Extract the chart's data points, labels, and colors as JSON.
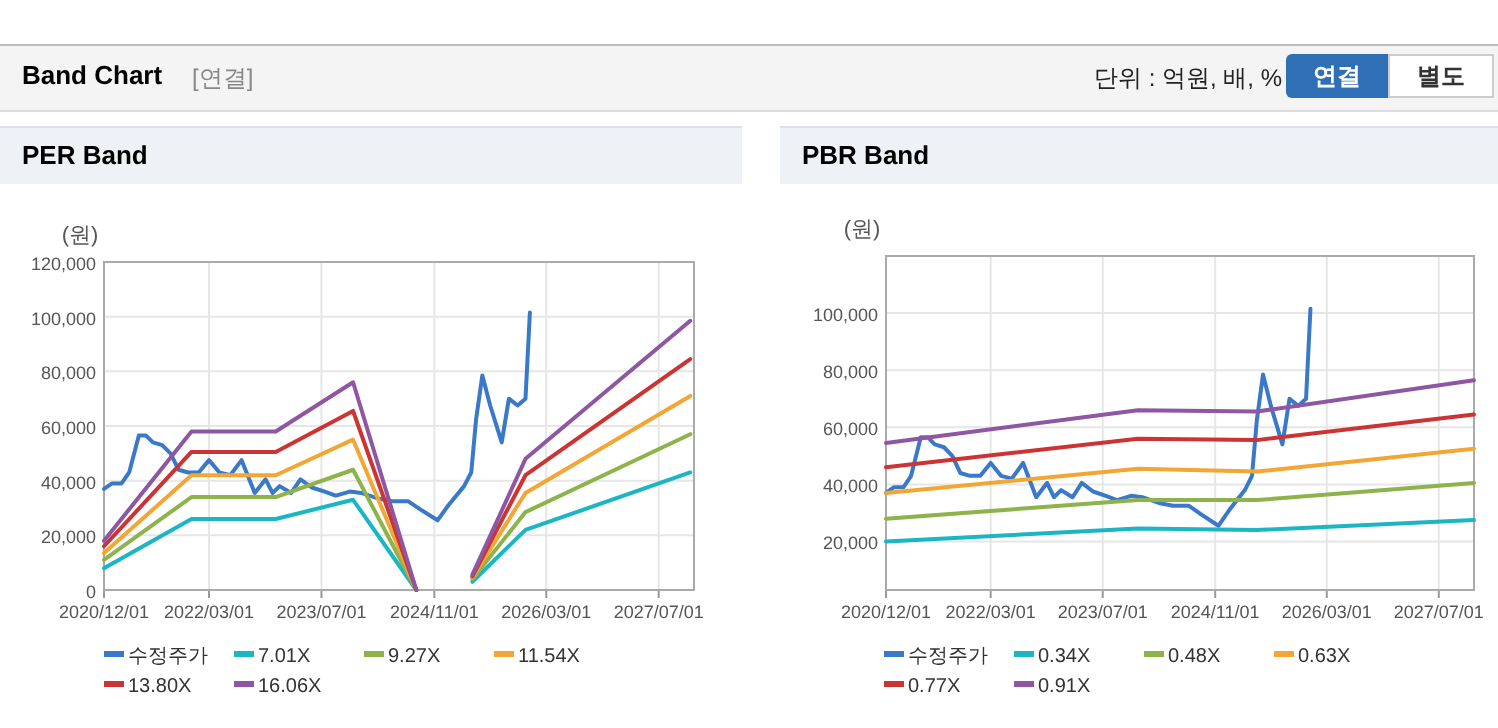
{
  "chart_data": [
    {
      "type": "other",
      "title": "Band Chart",
      "annotations": [
        "[연결]",
        "단위 : 억원, 배, %",
        "연결",
        "별도"
      ]
    },
    {
      "type": "line",
      "title": "PER Band",
      "ylabel": "(원)",
      "grid": true,
      "legend": "bottom",
      "line_style": "solid",
      "marker": "none",
      "xlim": [
        "2020-12-01",
        "2027-12-01"
      ],
      "xticks": [
        {
          "value": "2020-12-01",
          "label": "2020/12/01"
        },
        {
          "value": "2022-03-01",
          "label": "2022/03/01"
        },
        {
          "value": "2023-07-01",
          "label": "2023/07/01"
        },
        {
          "value": "2024-11-01",
          "label": "2024/11/01"
        },
        {
          "value": "2026-03-01",
          "label": "2026/03/01"
        },
        {
          "value": "2027-07-01",
          "label": "2027/07/01"
        }
      ],
      "ylim": [
        0,
        120000
      ],
      "yticks": [
        {
          "value": 0,
          "label": "0"
        },
        {
          "value": 20000,
          "label": "20,000"
        },
        {
          "value": 40000,
          "label": "40,000"
        },
        {
          "value": 60000,
          "label": "60,000"
        },
        {
          "value": 80000,
          "label": "80,000"
        },
        {
          "value": 100000,
          "label": "100,000"
        },
        {
          "value": 120000,
          "label": "120,000"
        }
      ],
      "series": [
        {
          "name": "수정주가",
          "color": "#3a78c9",
          "x": [
            "2020-12-01",
            "2021-01-05",
            "2021-02-15",
            "2021-03-20",
            "2021-05-01",
            "2021-06-01",
            "2021-07-01",
            "2021-08-10",
            "2021-09-15",
            "2021-10-20",
            "2021-12-01",
            "2022-01-15",
            "2022-03-01",
            "2022-04-15",
            "2022-06-01",
            "2022-07-20",
            "2022-09-15",
            "2022-11-01",
            "2022-12-01",
            "2023-01-01",
            "2023-02-20",
            "2023-04-01",
            "2023-05-20",
            "2023-07-15",
            "2023-09-01",
            "2023-11-01",
            "2023-12-20",
            "2024-03-01",
            "2024-05-01",
            "2024-07-10",
            "2024-09-01",
            "2024-11-15",
            "2025-01-01",
            "2025-03-10",
            "2025-04-10",
            "2025-05-01",
            "2025-05-28",
            "2025-07-01",
            "2025-08-20",
            "2025-09-20",
            "2025-10-28",
            "2025-12-01",
            "2025-12-20"
          ],
          "values": [
            37000,
            39000,
            39000,
            43000,
            56500,
            56500,
            54000,
            53000,
            50000,
            44000,
            43000,
            43000,
            47500,
            43000,
            42000,
            47500,
            35500,
            40500,
            35500,
            38000,
            35500,
            40500,
            37500,
            36000,
            34500,
            36000,
            35500,
            33500,
            32500,
            32500,
            29500,
            25500,
            31000,
            38000,
            43000,
            62500,
            78500,
            67500,
            54000,
            70000,
            67500,
            70000,
            101500
          ]
        },
        {
          "name": "7.01X",
          "color": "#1bb5c4",
          "x": [
            "2020-12-01",
            "2021-12-15",
            "2022-12-15",
            "2023-11-15",
            "2024-08-15",
            "2024-09-15",
            "2025-04-15",
            "2025-12-01",
            "2027-11-15"
          ],
          "values": [
            8000,
            26000,
            26000,
            33000,
            0,
            null,
            3000,
            22000,
            43000
          ]
        },
        {
          "name": "9.27X",
          "color": "#8db34a",
          "x": [
            "2020-12-01",
            "2021-12-15",
            "2022-12-15",
            "2023-11-15",
            "2024-08-15",
            "2024-09-15",
            "2025-04-15",
            "2025-12-01",
            "2027-11-15"
          ],
          "values": [
            11000,
            34000,
            34000,
            44000,
            0,
            null,
            4000,
            28500,
            57000
          ]
        },
        {
          "name": "11.54X",
          "color": "#f2a633",
          "x": [
            "2020-12-01",
            "2021-12-15",
            "2022-12-15",
            "2023-11-15",
            "2024-08-15",
            "2024-09-15",
            "2025-04-15",
            "2025-12-01",
            "2027-11-15"
          ],
          "values": [
            13500,
            42000,
            42000,
            55000,
            0,
            null,
            4500,
            35500,
            71000
          ]
        },
        {
          "name": "13.80X",
          "color": "#cc3333",
          "x": [
            "2020-12-01",
            "2021-12-15",
            "2022-12-15",
            "2023-11-15",
            "2024-08-15",
            "2024-09-15",
            "2025-04-15",
            "2025-12-01",
            "2027-11-15"
          ],
          "values": [
            16000,
            50500,
            50500,
            65500,
            0,
            null,
            5000,
            42000,
            84500
          ]
        },
        {
          "name": "16.06X",
          "color": "#8e56a3",
          "x": [
            "2020-12-01",
            "2021-12-15",
            "2022-12-15",
            "2023-11-15",
            "2024-08-15",
            "2024-09-15",
            "2025-04-15",
            "2025-12-01",
            "2027-11-15"
          ],
          "values": [
            18000,
            58000,
            58000,
            76000,
            0,
            null,
            5600,
            48000,
            98500
          ]
        }
      ]
    },
    {
      "type": "line",
      "title": "PBR Band",
      "ylabel": "(원)",
      "grid": true,
      "legend": "bottom",
      "line_style": "solid",
      "marker": "none",
      "xlim": [
        "2020-12-01",
        "2027-12-01"
      ],
      "xticks": [
        {
          "value": "2020-12-01",
          "label": "2020/12/01"
        },
        {
          "value": "2022-03-01",
          "label": "2022/03/01"
        },
        {
          "value": "2023-07-01",
          "label": "2023/07/01"
        },
        {
          "value": "2024-11-01",
          "label": "2024/11/01"
        },
        {
          "value": "2026-03-01",
          "label": "2026/03/01"
        },
        {
          "value": "2027-07-01",
          "label": "2027/07/01"
        }
      ],
      "ylim": [
        3000,
        120000
      ],
      "yticks": [
        {
          "value": 20000,
          "label": "20,000"
        },
        {
          "value": 40000,
          "label": "40,000"
        },
        {
          "value": 60000,
          "label": "60,000"
        },
        {
          "value": 80000,
          "label": "80,000"
        },
        {
          "value": 100000,
          "label": "100,000"
        }
      ],
      "series": [
        {
          "name": "수정주가",
          "color": "#3a78c9",
          "x": [
            "2020-12-01",
            "2021-01-05",
            "2021-02-15",
            "2021-03-20",
            "2021-05-01",
            "2021-06-01",
            "2021-07-01",
            "2021-08-10",
            "2021-09-15",
            "2021-10-20",
            "2021-12-01",
            "2022-01-15",
            "2022-03-01",
            "2022-04-15",
            "2022-06-01",
            "2022-07-20",
            "2022-09-15",
            "2022-11-01",
            "2022-12-01",
            "2023-01-01",
            "2023-02-20",
            "2023-04-01",
            "2023-05-20",
            "2023-07-15",
            "2023-09-01",
            "2023-11-01",
            "2023-12-20",
            "2024-03-01",
            "2024-05-01",
            "2024-07-10",
            "2024-09-01",
            "2024-11-15",
            "2025-01-01",
            "2025-03-10",
            "2025-04-10",
            "2025-05-01",
            "2025-05-28",
            "2025-07-01",
            "2025-08-20",
            "2025-09-20",
            "2025-10-28",
            "2025-12-01",
            "2025-12-20"
          ],
          "values": [
            37000,
            39000,
            39000,
            43000,
            56500,
            56500,
            54000,
            53000,
            50000,
            44000,
            43000,
            43000,
            47500,
            43000,
            42000,
            47500,
            35500,
            40500,
            35500,
            38000,
            35500,
            40500,
            37500,
            36000,
            34500,
            36000,
            35500,
            33500,
            32500,
            32500,
            29500,
            25500,
            31000,
            38000,
            43000,
            62500,
            78500,
            67500,
            54000,
            70000,
            67500,
            70000,
            101500
          ]
        },
        {
          "name": "0.34X",
          "color": "#1bb5c4",
          "x": [
            "2020-12-01",
            "2023-12-01",
            "2025-05-01",
            "2027-12-01"
          ],
          "values": [
            20000,
            24500,
            24000,
            27500
          ]
        },
        {
          "name": "0.48X",
          "color": "#8db34a",
          "x": [
            "2020-12-01",
            "2023-12-01",
            "2025-05-01",
            "2027-12-01"
          ],
          "values": [
            28000,
            34500,
            34500,
            40500
          ]
        },
        {
          "name": "0.63X",
          "color": "#f2a633",
          "x": [
            "2020-12-01",
            "2023-12-01",
            "2025-05-01",
            "2027-12-01"
          ],
          "values": [
            37000,
            45500,
            44500,
            52500
          ]
        },
        {
          "name": "0.77X",
          "color": "#cc3333",
          "x": [
            "2020-12-01",
            "2023-12-01",
            "2025-05-01",
            "2027-12-01"
          ],
          "values": [
            46000,
            56000,
            55500,
            64500
          ]
        },
        {
          "name": "0.91X",
          "color": "#8e56a3",
          "x": [
            "2020-12-01",
            "2023-12-01",
            "2025-05-01",
            "2027-12-01"
          ],
          "values": [
            54500,
            66000,
            65500,
            76500
          ]
        }
      ]
    }
  ]
}
